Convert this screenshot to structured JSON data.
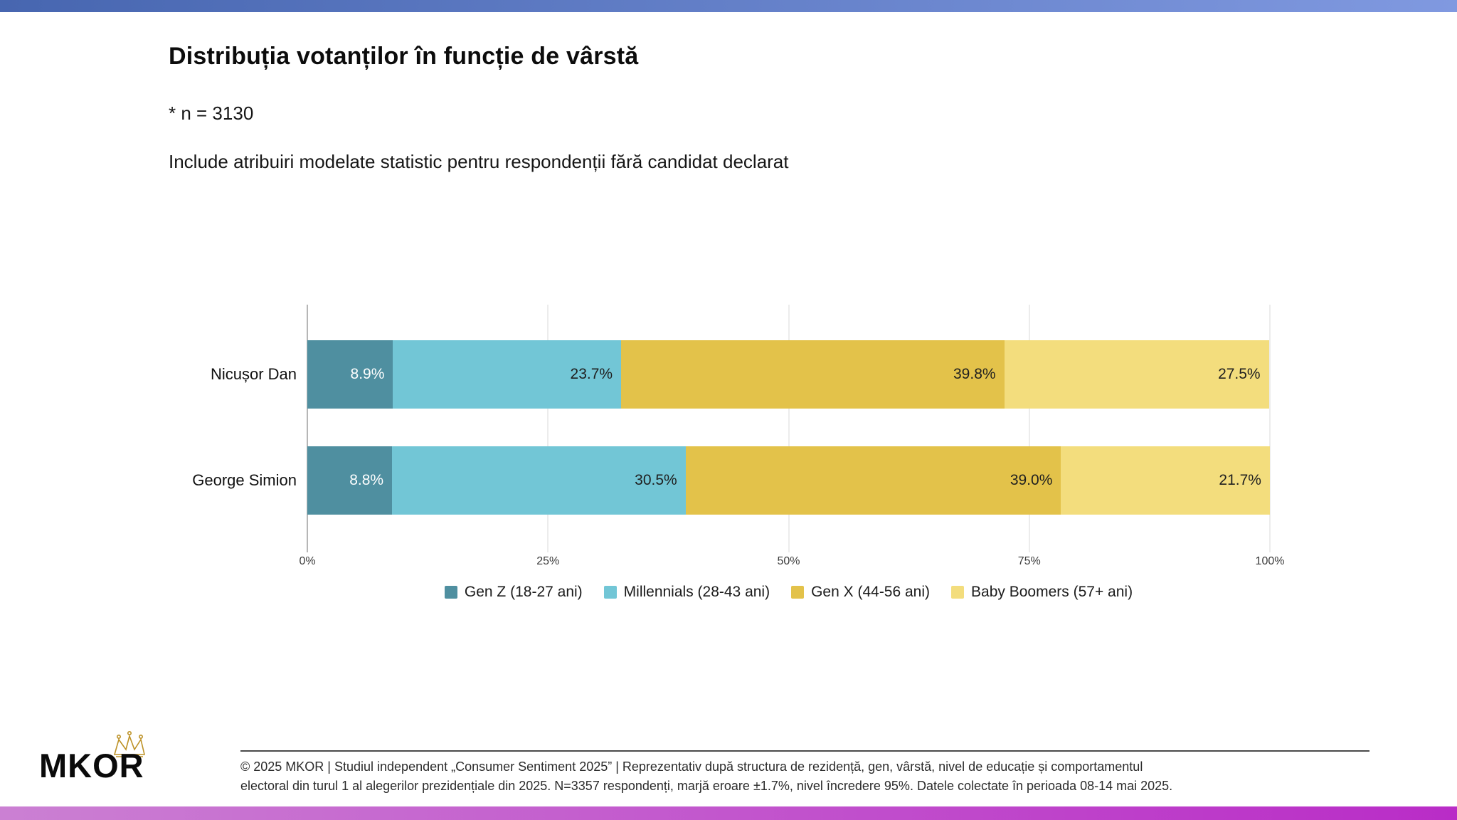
{
  "slide": {
    "title": "Distribuția votanților în funcție de vârstă",
    "note_sample": "* n = 3130",
    "note_method": "Include atribuiri modelate statistic pentru respondenții fără candidat declarat"
  },
  "chart_data": {
    "type": "bar",
    "stacked": true,
    "orientation": "horizontal",
    "title": "Distribuția votanților în funcție de vârstă",
    "categories": [
      "Nicușor Dan",
      "George Simion"
    ],
    "series": [
      {
        "name": "Gen Z (18-27 ani)",
        "color": "#4f8fa0",
        "label_color": "#ffffff",
        "values": [
          8.9,
          8.8
        ]
      },
      {
        "name": "Millennials (28-43 ani)",
        "color": "#72c6d6",
        "label_color": "#1f1f1f",
        "values": [
          23.7,
          30.5
        ]
      },
      {
        "name": "Gen X (44-56 ani)",
        "color": "#e3c24a",
        "label_color": "#1f1f1f",
        "values": [
          39.8,
          39.0
        ]
      },
      {
        "name": "Baby Boomers (57+ ani)",
        "color": "#f3dd7d",
        "label_color": "#1f1f1f",
        "values": [
          27.5,
          21.7
        ]
      }
    ],
    "value_suffix": "%",
    "xlim": [
      0,
      100
    ],
    "x_ticks": [
      "0%",
      "25%",
      "50%",
      "75%",
      "100%"
    ],
    "grid": true,
    "legend_position": "bottom"
  },
  "footer": {
    "logo_text": "MKOR",
    "line1": "© 2025 MKOR | Studiul independent „Consumer Sentiment 2025” | Reprezentativ după structura de rezidență, gen, vârstă, nivel de educație și comportamentul",
    "line2": "electoral din turul 1 al alegerilor prezidențiale din 2025. N=3357 respondenți, marjă eroare ±1.7%, nivel încredere 95%. Datele colectate în perioada 08-14 mai 2025."
  },
  "colors": {
    "top_bar_gradient": [
      "#4766b0",
      "#8099e0"
    ],
    "bottom_bar_gradient": [
      "#cb80d3",
      "#b92cc7"
    ],
    "crown_gold": "#bd9227"
  }
}
